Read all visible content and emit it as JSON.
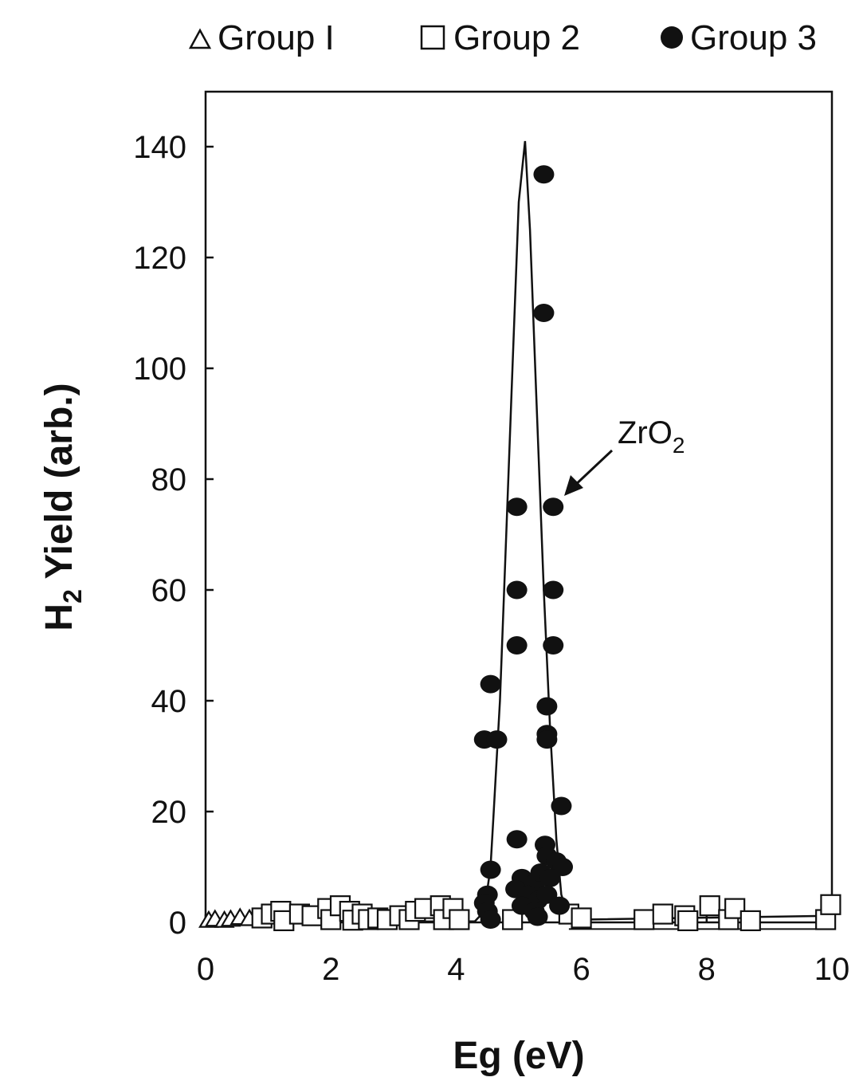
{
  "chart_data": {
    "type": "scatter",
    "xlabel": "Eg (eV)",
    "ylabel": {
      "main": "H",
      "sub": "2",
      "rest": " Yield (arb.)"
    },
    "xlim": [
      0,
      10
    ],
    "ylim": [
      0,
      150
    ],
    "xticks": [
      "0",
      "2",
      "4",
      "6",
      "8",
      "10"
    ],
    "yticks": [
      "0",
      "20",
      "40",
      "60",
      "80",
      "100",
      "120",
      "140"
    ],
    "legend_position": "top",
    "grid": false,
    "series": [
      {
        "name": "Group I",
        "marker": "triangle-open",
        "points": [
          [
            0.05,
            0.3
          ],
          [
            0.15,
            0.5
          ],
          [
            0.3,
            0.3
          ],
          [
            0.4,
            0.5
          ],
          [
            0.55,
            0.8
          ],
          [
            0.7,
            0.6
          ]
        ]
      },
      {
        "name": "Group 2",
        "marker": "square-open",
        "points": [
          [
            0.9,
            0.8
          ],
          [
            1.05,
            1.5
          ],
          [
            1.2,
            2.0
          ],
          [
            1.25,
            0.3
          ],
          [
            1.5,
            1.5
          ],
          [
            1.7,
            1.2
          ],
          [
            1.95,
            2.5
          ],
          [
            2.0,
            0.5
          ],
          [
            2.15,
            3.0
          ],
          [
            2.3,
            2.0
          ],
          [
            2.35,
            0.4
          ],
          [
            2.5,
            1.5
          ],
          [
            2.6,
            0.5
          ],
          [
            2.75,
            0.8
          ],
          [
            2.9,
            0.5
          ],
          [
            3.1,
            1.2
          ],
          [
            3.25,
            0.5
          ],
          [
            3.35,
            2.0
          ],
          [
            3.5,
            2.5
          ],
          [
            3.75,
            3.0
          ],
          [
            3.8,
            0.5
          ],
          [
            3.95,
            2.5
          ],
          [
            4.05,
            0.5
          ],
          [
            4.9,
            0.5
          ],
          [
            5.8,
            1.5
          ],
          [
            6.0,
            0.8
          ],
          [
            7.0,
            0.5
          ],
          [
            7.3,
            1.5
          ],
          [
            7.65,
            1.2
          ],
          [
            7.7,
            0.3
          ],
          [
            8.05,
            3.0
          ],
          [
            8.35,
            0.5
          ],
          [
            8.45,
            2.5
          ],
          [
            8.7,
            0.3
          ],
          [
            9.9,
            0.5
          ],
          [
            9.98,
            3.2
          ]
        ]
      },
      {
        "name": "Group 3",
        "marker": "circle-filled",
        "points": [
          [
            5.4,
            135
          ],
          [
            5.4,
            110
          ],
          [
            4.97,
            75
          ],
          [
            5.55,
            75
          ],
          [
            4.97,
            60
          ],
          [
            5.55,
            60
          ],
          [
            4.97,
            50
          ],
          [
            5.55,
            50
          ],
          [
            4.55,
            43
          ],
          [
            5.45,
            39
          ],
          [
            4.45,
            33
          ],
          [
            4.65,
            33
          ],
          [
            5.45,
            34
          ],
          [
            5.45,
            33
          ],
          [
            5.68,
            21
          ],
          [
            4.97,
            15
          ],
          [
            5.42,
            14
          ],
          [
            5.45,
            12
          ],
          [
            5.6,
            11
          ],
          [
            5.7,
            10
          ],
          [
            4.55,
            9.5
          ],
          [
            5.05,
            8
          ],
          [
            5.25,
            7
          ],
          [
            5.35,
            9
          ],
          [
            5.5,
            8
          ],
          [
            4.95,
            6
          ],
          [
            5.15,
            5
          ],
          [
            5.3,
            4
          ],
          [
            5.45,
            5
          ],
          [
            5.65,
            3
          ],
          [
            4.5,
            5
          ],
          [
            4.45,
            3.5
          ],
          [
            4.5,
            2
          ],
          [
            4.55,
            0.5
          ],
          [
            5.05,
            3
          ],
          [
            5.25,
            2
          ],
          [
            5.3,
            1
          ]
        ]
      }
    ],
    "fit_curve": {
      "peak_x": 5.1,
      "peak_y": 141,
      "points": [
        [
          0,
          0
        ],
        [
          4.3,
          0.2
        ],
        [
          4.45,
          2
        ],
        [
          4.55,
          10
        ],
        [
          4.6,
          20
        ],
        [
          4.7,
          40
        ],
        [
          4.8,
          70
        ],
        [
          4.9,
          100
        ],
        [
          5.0,
          130
        ],
        [
          5.1,
          141
        ],
        [
          5.18,
          125
        ],
        [
          5.28,
          95
        ],
        [
          5.4,
          60
        ],
        [
          5.5,
          35
        ],
        [
          5.6,
          15
        ],
        [
          5.68,
          5
        ],
        [
          5.8,
          1
        ],
        [
          6.0,
          0.5
        ],
        [
          10.0,
          1.2
        ]
      ]
    },
    "annotation": {
      "text": "ZrO",
      "sub": "2",
      "arrow_to": [
        5.55,
        75
      ]
    }
  }
}
